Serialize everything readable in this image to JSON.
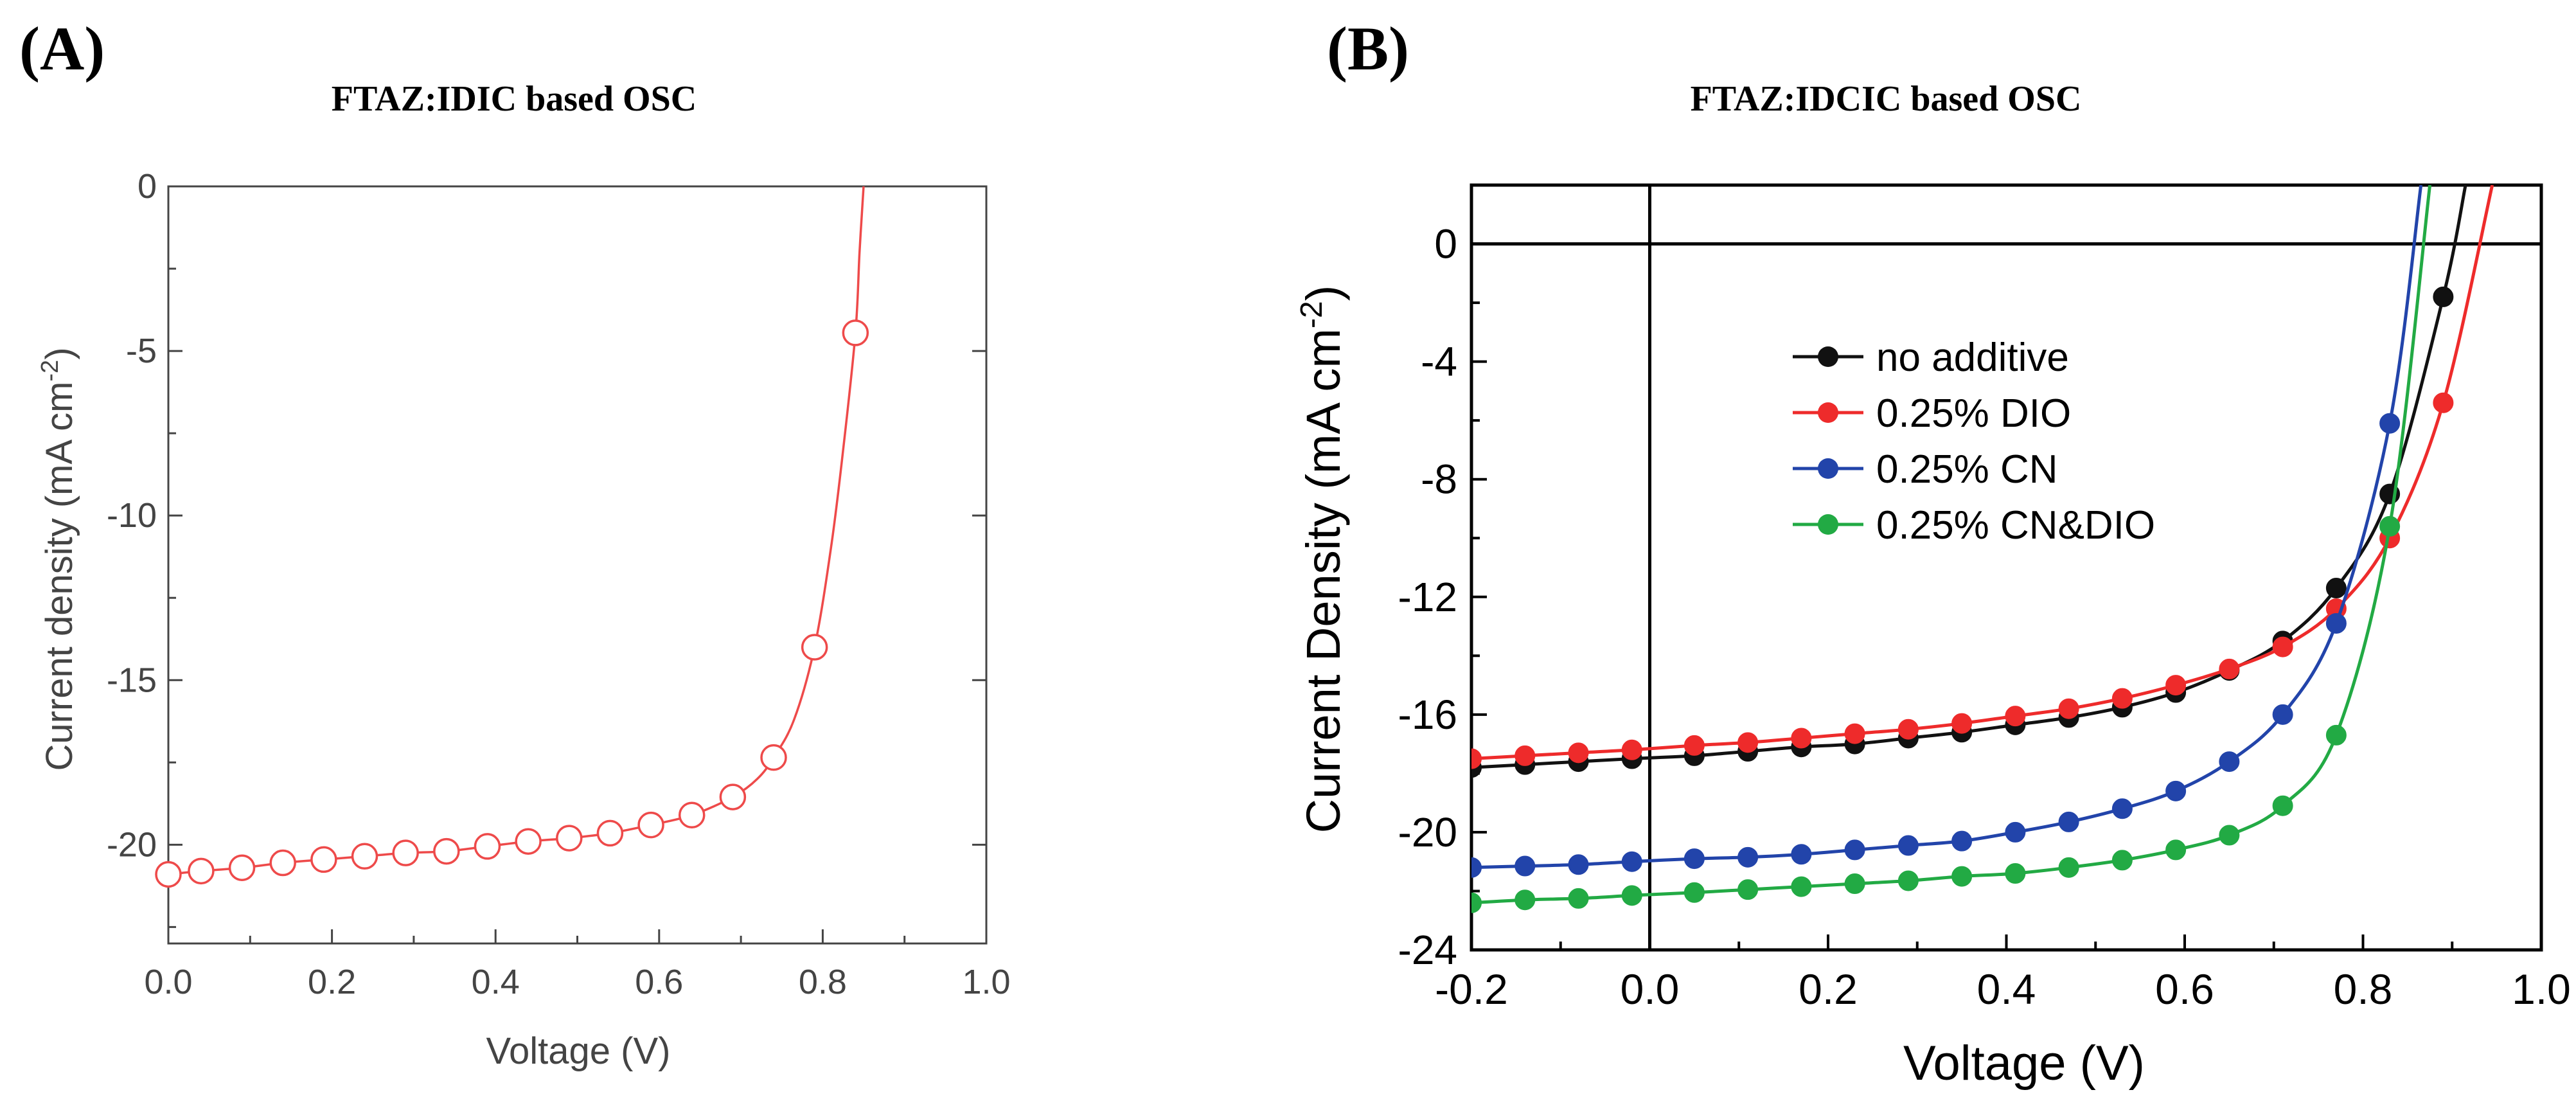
{
  "chart_data": [
    {
      "panel_label": "(A)",
      "title": "FTAZ:IDIC based OSC",
      "type": "line",
      "xlabel": "Voltage (V)",
      "ylabel": "Current density (mA cm",
      "ylabel_sup": "-2",
      "ylabel_end": ")",
      "xlim": [
        0.0,
        1.0
      ],
      "ylim": [
        -23,
        0
      ],
      "xticks": [
        "0.0",
        "0.2",
        "0.4",
        "0.6",
        "0.8",
        "1.0"
      ],
      "xtick_values": [
        0.0,
        0.2,
        0.4,
        0.6,
        0.8,
        1.0
      ],
      "yticks": [
        "0",
        "-5",
        "-10",
        "-15",
        "-20"
      ],
      "ytick_values": [
        0,
        -5,
        -10,
        -15,
        -20
      ],
      "grid": false,
      "series": [
        {
          "color": "#ee4a4a",
          "marker": "open-circle",
          "x": [
            0.0,
            0.04,
            0.09,
            0.14,
            0.19,
            0.24,
            0.29,
            0.34,
            0.39,
            0.44,
            0.49,
            0.54,
            0.59,
            0.64,
            0.69,
            0.74,
            0.79,
            0.84
          ],
          "y": [
            -20.9,
            -20.8,
            -20.7,
            -20.55,
            -20.45,
            -20.35,
            -20.25,
            -20.2,
            -20.05,
            -19.9,
            -19.8,
            -19.65,
            -19.4,
            -19.1,
            -18.55,
            -17.35,
            -14.0,
            -4.45
          ],
          "curve_x": [
            0.0,
            0.04,
            0.09,
            0.14,
            0.19,
            0.24,
            0.29,
            0.34,
            0.39,
            0.44,
            0.49,
            0.54,
            0.59,
            0.64,
            0.69,
            0.72,
            0.74,
            0.765,
            0.79,
            0.81,
            0.825,
            0.84,
            0.845,
            0.85
          ],
          "curve_y": [
            -20.9,
            -20.8,
            -20.7,
            -20.55,
            -20.45,
            -20.35,
            -20.25,
            -20.2,
            -20.05,
            -19.9,
            -19.8,
            -19.65,
            -19.4,
            -19.1,
            -18.55,
            -18.0,
            -17.35,
            -16.2,
            -14.0,
            -11.0,
            -8.0,
            -4.45,
            -2.0,
            0.0
          ]
        }
      ]
    },
    {
      "panel_label": "(B)",
      "title": "FTAZ:IDCIC based OSC",
      "type": "line",
      "xlabel": "Voltage (V)",
      "ylabel": "Current Density (mA cm",
      "ylabel_sup": "-2",
      "ylabel_end": ")",
      "xlim": [
        -0.2,
        1.0
      ],
      "ylim": [
        -24,
        2
      ],
      "xticks": [
        "-0.2",
        "0.0",
        "0.2",
        "0.4",
        "0.6",
        "0.8",
        "1.0"
      ],
      "xtick_values": [
        -0.2,
        0.0,
        0.2,
        0.4,
        0.6,
        0.8,
        1.0
      ],
      "yticks": [
        "0",
        "-4",
        "-8",
        "-12",
        "-16",
        "-20",
        "-24"
      ],
      "ytick_values": [
        0,
        -4,
        -8,
        -12,
        -16,
        -20,
        -24
      ],
      "grid": false,
      "reference_lines": {
        "x": 0,
        "y": 0
      },
      "legend_position": "center-left",
      "series": [
        {
          "name": "no additive",
          "color": "#111111",
          "x": [
            -0.2,
            -0.14,
            -0.08,
            -0.02,
            0.05,
            0.11,
            0.17,
            0.23,
            0.29,
            0.35,
            0.41,
            0.47,
            0.53,
            0.59,
            0.65,
            0.71,
            0.77,
            0.83,
            0.89
          ],
          "y": [
            -17.8,
            -17.7,
            -17.6,
            -17.5,
            -17.4,
            -17.25,
            -17.1,
            -17.0,
            -16.8,
            -16.6,
            -16.35,
            -16.1,
            -15.75,
            -15.25,
            -14.5,
            -13.5,
            -11.7,
            -8.5,
            -1.8
          ],
          "end_x": 0.915
        },
        {
          "name": "0.25% DIO",
          "color": "#ee2b2b",
          "x": [
            -0.2,
            -0.14,
            -0.08,
            -0.02,
            0.05,
            0.11,
            0.17,
            0.23,
            0.29,
            0.35,
            0.41,
            0.47,
            0.53,
            0.59,
            0.65,
            0.71,
            0.77,
            0.83,
            0.89
          ],
          "y": [
            -17.5,
            -17.4,
            -17.3,
            -17.2,
            -17.05,
            -16.95,
            -16.8,
            -16.65,
            -16.5,
            -16.3,
            -16.05,
            -15.8,
            -15.45,
            -15.0,
            -14.45,
            -13.7,
            -12.4,
            -10.0,
            -5.4
          ],
          "end_x": 0.945
        },
        {
          "name": "0.25% CN",
          "color": "#2244aa",
          "x": [
            -0.2,
            -0.14,
            -0.08,
            -0.02,
            0.05,
            0.11,
            0.17,
            0.23,
            0.29,
            0.35,
            0.41,
            0.47,
            0.53,
            0.59,
            0.65,
            0.71,
            0.77,
            0.83
          ],
          "y": [
            -21.2,
            -21.15,
            -21.1,
            -21.0,
            -20.9,
            -20.85,
            -20.75,
            -20.6,
            -20.45,
            -20.3,
            -20.0,
            -19.65,
            -19.2,
            -18.6,
            -17.6,
            -16.0,
            -12.9,
            -6.1
          ],
          "end_x": 0.865
        },
        {
          "name": "0.25% CN&DIO",
          "color": "#22aa44",
          "x": [
            -0.2,
            -0.14,
            -0.08,
            -0.02,
            0.05,
            0.11,
            0.17,
            0.23,
            0.29,
            0.35,
            0.41,
            0.47,
            0.53,
            0.59,
            0.65,
            0.71,
            0.77,
            0.83
          ],
          "y": [
            -22.4,
            -22.3,
            -22.25,
            -22.15,
            -22.05,
            -21.95,
            -21.85,
            -21.75,
            -21.65,
            -21.5,
            -21.4,
            -21.2,
            -20.95,
            -20.6,
            -20.1,
            -19.1,
            -16.7,
            -9.6
          ],
          "end_x": 0.875
        }
      ]
    }
  ]
}
